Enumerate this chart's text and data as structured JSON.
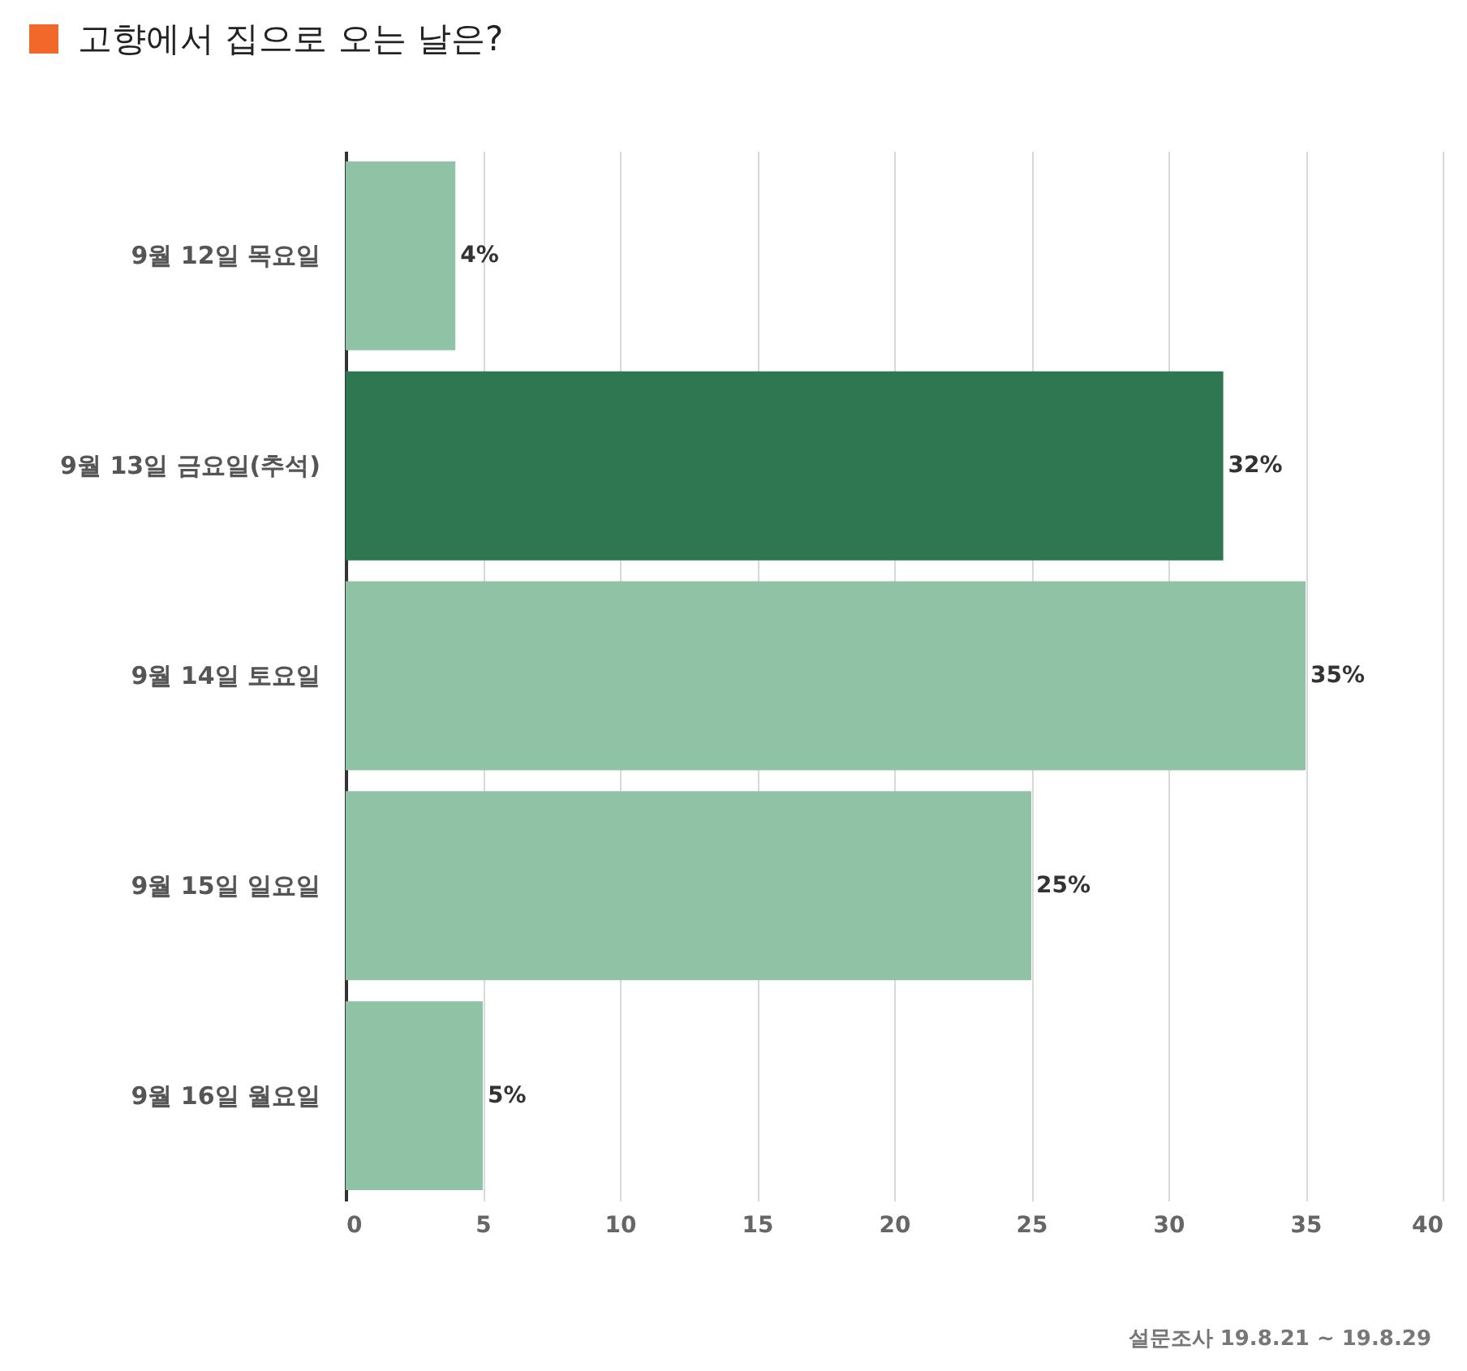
{
  "chart_data": {
    "type": "bar",
    "orientation": "horizontal",
    "title": "고향에서 집으로 오는 날은?",
    "categories": [
      "9월 12일 목요일",
      "9월 13일 금요일(추석)",
      "9월 14일 토요일",
      "9월 15일 일요일",
      "9월 16일 월요일"
    ],
    "values": [
      4,
      32,
      35,
      25,
      5
    ],
    "value_labels": [
      "4%",
      "32%",
      "35%",
      "25%",
      "5%"
    ],
    "colors": [
      "#90c2a6",
      "#2e7750",
      "#90c2a6",
      "#90c2a6",
      "#90c2a6"
    ],
    "xlim": [
      0,
      40
    ],
    "xticks": [
      0,
      5,
      10,
      15,
      20,
      25,
      30,
      35,
      40
    ],
    "grid": "x",
    "annotations": [
      "설문조사 19.8.21 ~ 19.8.29"
    ]
  }
}
